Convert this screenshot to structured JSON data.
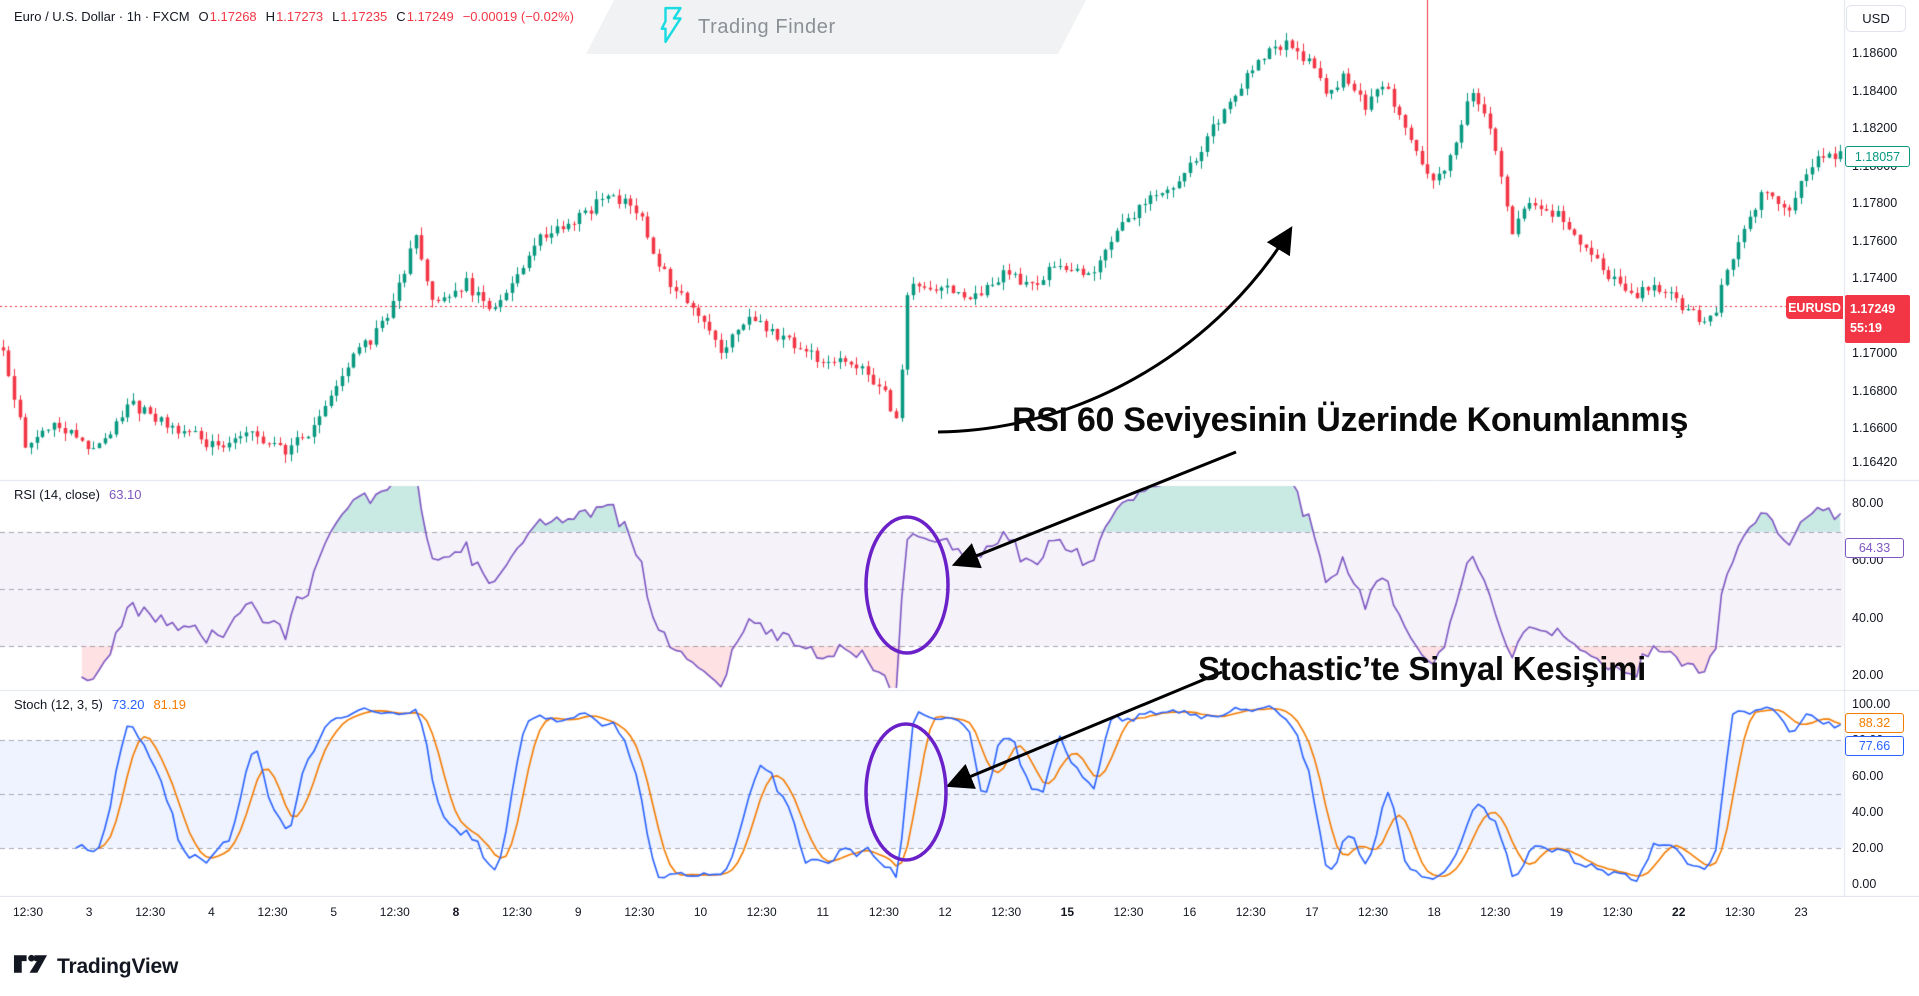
{
  "colors": {
    "up": "#089981",
    "down": "#f23645",
    "rsi_line": "#7e57c2",
    "stoch_k": "#2962ff",
    "stoch_d": "#f57c00",
    "accent_cyan": "#19dbe2",
    "text_dark": "#131722",
    "muted": "#8b9097",
    "grid_dash": "#a6a9b3",
    "separator": "#e0e3eb",
    "rsi_band_fill": "rgba(126,87,194,0.08)",
    "stoch_band_fill": "rgba(41,98,255,0.08)",
    "overbought_fill": "rgba(8,153,129,0.22)",
    "oversold_fill": "rgba(242,54,69,0.15)",
    "annotation_purple": "#6b21c8",
    "arrow_black": "#000000"
  },
  "header": {
    "symbol_title": "Euro / U.S. Dollar · 1h · FXCM",
    "ohlc": [
      {
        "label": "O",
        "value": "1.17268"
      },
      {
        "label": "H",
        "value": "1.17273"
      },
      {
        "label": "L",
        "value": "1.17235"
      },
      {
        "label": "C",
        "value": "1.17249"
      }
    ],
    "change": "−0.00019 (−0.02%)",
    "brand": "Trading Finder",
    "currency_button": "USD"
  },
  "price_axis": {
    "ticks": [
      "1.18600",
      "1.18400",
      "1.18200",
      "1.18000",
      "1.17800",
      "1.17600",
      "1.17400",
      "1.17000",
      "1.16800",
      "1.16600",
      "1.16420"
    ],
    "last_price_label": "1.18057",
    "ticker_label": "EURUSD",
    "current_price": "1.17249",
    "countdown": "55:19"
  },
  "rsi_pane": {
    "label": "RSI (14, close)",
    "value": "63.10",
    "value_box": "64.33",
    "ticks": [
      "80.00",
      "60.00",
      "40.00",
      "20.00"
    ],
    "levels": [
      70,
      50,
      30
    ]
  },
  "stoch_pane": {
    "label": "Stoch (12, 3, 5)",
    "k_value": "73.20",
    "d_value": "81.19",
    "d_box": "88.32",
    "k_box": "77.66",
    "ticks": [
      "100.00",
      "80.00",
      "60.00",
      "40.00",
      "20.00",
      "0.00"
    ],
    "levels": [
      80,
      50,
      20
    ]
  },
  "time_axis": {
    "labels": [
      {
        "text": "12:30"
      },
      {
        "text": "3"
      },
      {
        "text": "12:30"
      },
      {
        "text": "4"
      },
      {
        "text": "12:30"
      },
      {
        "text": "5"
      },
      {
        "text": "12:30"
      },
      {
        "text": "8",
        "bold": true
      },
      {
        "text": "12:30"
      },
      {
        "text": "9"
      },
      {
        "text": "12:30"
      },
      {
        "text": "10"
      },
      {
        "text": "12:30"
      },
      {
        "text": "11"
      },
      {
        "text": "12:30"
      },
      {
        "text": "12"
      },
      {
        "text": "12:30"
      },
      {
        "text": "15",
        "bold": true
      },
      {
        "text": "12:30"
      },
      {
        "text": "16"
      },
      {
        "text": "12:30"
      },
      {
        "text": "17"
      },
      {
        "text": "12:30"
      },
      {
        "text": "18"
      },
      {
        "text": "12:30"
      },
      {
        "text": "19"
      },
      {
        "text": "12:30"
      },
      {
        "text": "22",
        "bold": true
      },
      {
        "text": "12:30"
      },
      {
        "text": "23"
      }
    ]
  },
  "annotations": {
    "rsi_note": "RSI 60 Seviyesinin Üzerinde Konumlanmış",
    "stoch_note": "Stochastic’te Sinyal Kesişimi"
  },
  "footer": {
    "brand": "TradingView"
  },
  "chart_data": [
    {
      "type": "candlestick",
      "title": "EUR/USD 1h FXCM",
      "ylim": [
        1.1642,
        1.18883
      ],
      "price_ticks": [
        1.186,
        1.184,
        1.182,
        1.18,
        1.178,
        1.176,
        1.174,
        1.17,
        1.168,
        1.166,
        1.1642
      ],
      "current_price": 1.17249,
      "last_close": 1.18057,
      "bars": 326,
      "spike": {
        "t": 0.776,
        "high": 1.1895
      },
      "waypoints": [
        [
          0,
          1.1703
        ],
        [
          0.012,
          1.1652
        ],
        [
          0.03,
          1.1663
        ],
        [
          0.05,
          1.1649
        ],
        [
          0.07,
          1.1673
        ],
        [
          0.09,
          1.1662
        ],
        [
          0.115,
          1.1651
        ],
        [
          0.135,
          1.1657
        ],
        [
          0.155,
          1.1648
        ],
        [
          0.172,
          1.1663
        ],
        [
          0.19,
          1.1697
        ],
        [
          0.208,
          1.1716
        ],
        [
          0.225,
          1.1762
        ],
        [
          0.235,
          1.1726
        ],
        [
          0.252,
          1.1737
        ],
        [
          0.268,
          1.1722
        ],
        [
          0.292,
          1.1762
        ],
        [
          0.315,
          1.1774
        ],
        [
          0.33,
          1.1784
        ],
        [
          0.345,
          1.1776
        ],
        [
          0.36,
          1.1742
        ],
        [
          0.375,
          1.1724
        ],
        [
          0.39,
          1.1701
        ],
        [
          0.405,
          1.1719
        ],
        [
          0.42,
          1.1709
        ],
        [
          0.44,
          1.1699
        ],
        [
          0.46,
          1.1694
        ],
        [
          0.478,
          1.1684
        ],
        [
          0.487,
          1.1661
        ],
        [
          0.493,
          1.1739
        ],
        [
          0.51,
          1.1734
        ],
        [
          0.528,
          1.1729
        ],
        [
          0.545,
          1.1743
        ],
        [
          0.56,
          1.1736
        ],
        [
          0.575,
          1.1749
        ],
        [
          0.59,
          1.1739
        ],
        [
          0.61,
          1.1769
        ],
        [
          0.625,
          1.1783
        ],
        [
          0.64,
          1.1793
        ],
        [
          0.655,
          1.1813
        ],
        [
          0.67,
          1.1839
        ],
        [
          0.685,
          1.1859
        ],
        [
          0.7,
          1.1867
        ],
        [
          0.712,
          1.1853
        ],
        [
          0.721,
          1.1839
        ],
        [
          0.731,
          1.1849
        ],
        [
          0.741,
          1.1831
        ],
        [
          0.751,
          1.1843
        ],
        [
          0.763,
          1.1821
        ],
        [
          0.776,
          1.1789
        ],
        [
          0.786,
          1.1801
        ],
        [
          0.8,
          1.1841
        ],
        [
          0.81,
          1.1819
        ],
        [
          0.821,
          1.1763
        ],
        [
          0.832,
          1.1783
        ],
        [
          0.846,
          1.1773
        ],
        [
          0.86,
          1.1759
        ],
        [
          0.874,
          1.1741
        ],
        [
          0.886,
          1.1729
        ],
        [
          0.9,
          1.1736
        ],
        [
          0.915,
          1.1723
        ],
        [
          0.93,
          1.1717
        ],
        [
          0.945,
          1.1763
        ],
        [
          0.958,
          1.1785
        ],
        [
          0.971,
          1.1777
        ],
        [
          0.985,
          1.1801
        ],
        [
          1,
          1.1806
        ]
      ]
    },
    {
      "type": "line",
      "name": "RSI (14, close)",
      "params": {
        "length": 14,
        "source": "close"
      },
      "last_value": 64.33,
      "header_value": 63.1,
      "levels": [
        70,
        50,
        30
      ],
      "ylim_visible": [
        20,
        80
      ]
    },
    {
      "type": "line",
      "name": "Stoch (12, 3, 5)",
      "params": {
        "k": 12,
        "smooth": 3,
        "d": 5
      },
      "series": [
        {
          "name": "%K",
          "last_value": 77.66
        },
        {
          "name": "%D",
          "last_value": 88.32
        }
      ],
      "levels": [
        80,
        50,
        20
      ],
      "ylim_visible": [
        0,
        100
      ]
    }
  ]
}
